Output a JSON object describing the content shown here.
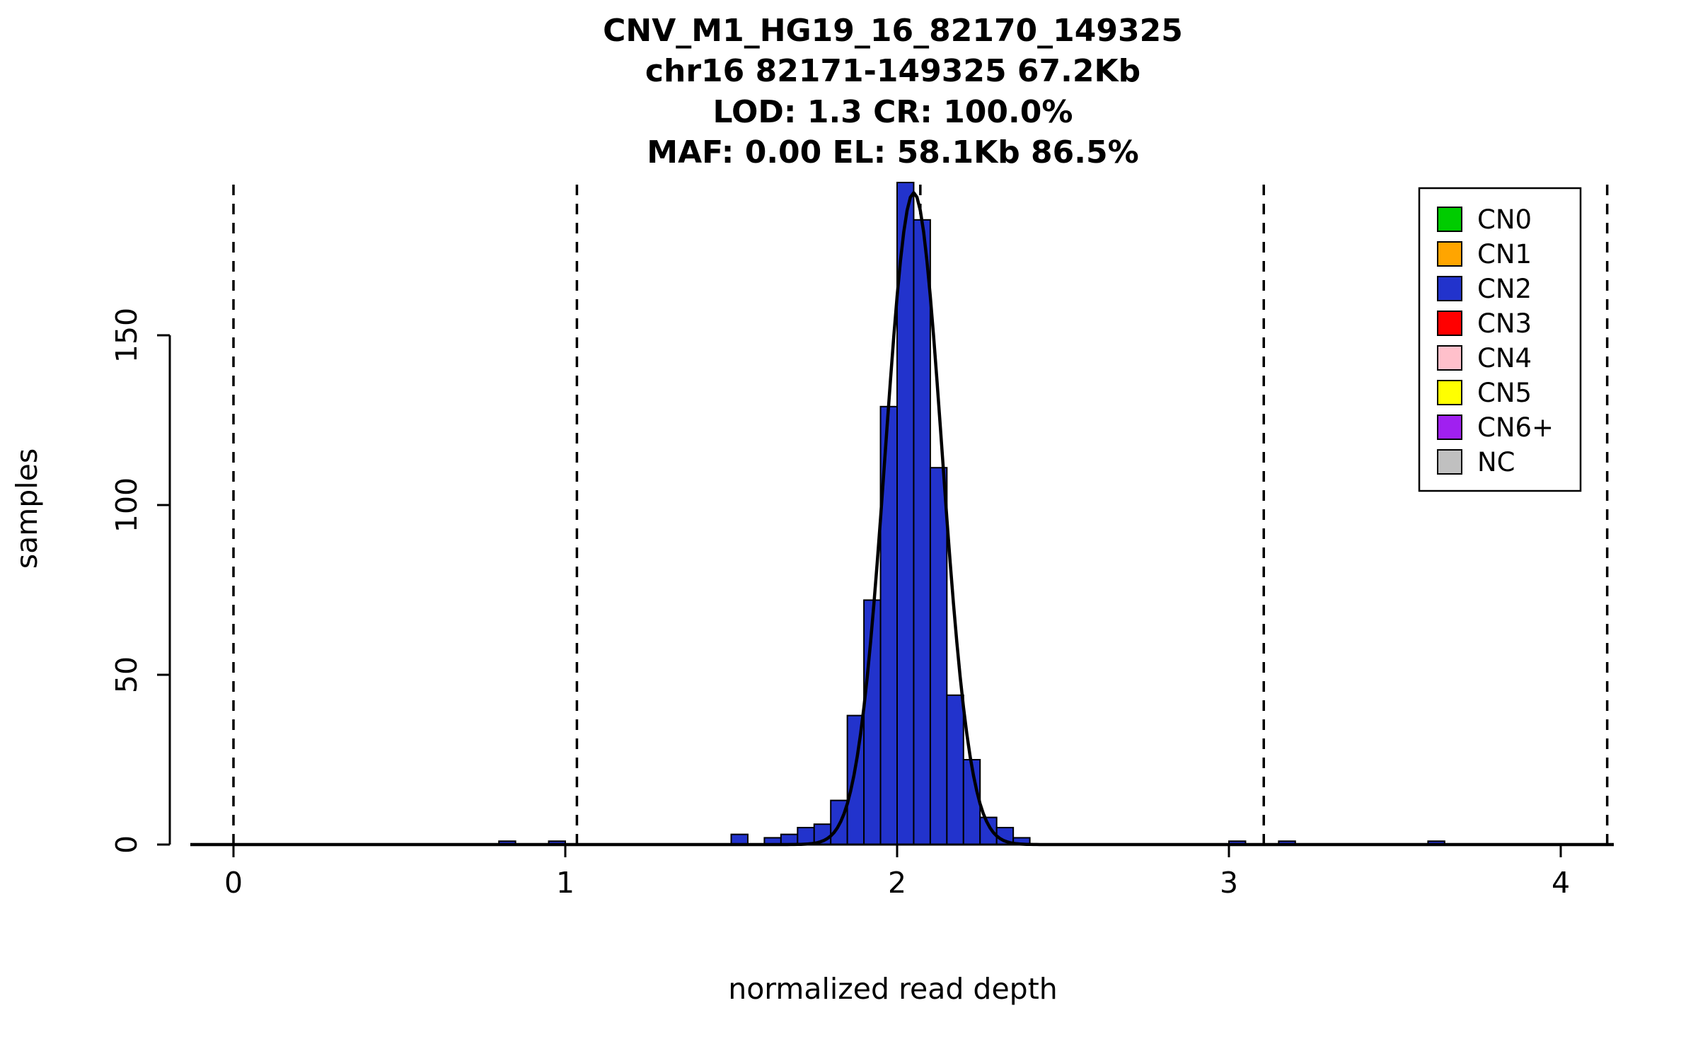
{
  "figure": {
    "background": "#FFFFFF"
  },
  "chart_data": {
    "type": "bar",
    "subtype": "histogram",
    "title_lines": [
      "CNV_M1_HG19_16_82170_149325",
      "chr16 82171-149325 67.2Kb",
      "LOD: 1.3 CR: 100.0%",
      "MAF: 0.00 EL: 58.1Kb 86.5%"
    ],
    "xlabel": "normalized read depth",
    "ylabel": "samples",
    "x_ticks": [
      0,
      1,
      2,
      3,
      4
    ],
    "y_ticks": [
      0,
      50,
      100,
      150
    ],
    "xlim": [
      -0.13,
      4.16
    ],
    "ylim": [
      0,
      195
    ],
    "grid": false,
    "bin_width": 0.05,
    "bars": [
      {
        "x": 0.8,
        "count": 1
      },
      {
        "x": 0.95,
        "count": 1
      },
      {
        "x": 1.5,
        "count": 3
      },
      {
        "x": 1.6,
        "count": 2
      },
      {
        "x": 1.65,
        "count": 3
      },
      {
        "x": 1.7,
        "count": 5
      },
      {
        "x": 1.75,
        "count": 6
      },
      {
        "x": 1.8,
        "count": 13
      },
      {
        "x": 1.85,
        "count": 38
      },
      {
        "x": 1.9,
        "count": 72
      },
      {
        "x": 1.95,
        "count": 129
      },
      {
        "x": 2.0,
        "count": 195
      },
      {
        "x": 2.05,
        "count": 184
      },
      {
        "x": 2.1,
        "count": 111
      },
      {
        "x": 2.15,
        "count": 44
      },
      {
        "x": 2.2,
        "count": 25
      },
      {
        "x": 2.25,
        "count": 8
      },
      {
        "x": 2.3,
        "count": 5
      },
      {
        "x": 2.35,
        "count": 2
      },
      {
        "x": 3.0,
        "count": 1
      },
      {
        "x": 3.15,
        "count": 1
      },
      {
        "x": 3.6,
        "count": 1
      }
    ],
    "fit_curve": {
      "shape": "gaussian",
      "mean": 2.05,
      "sd": 0.085,
      "amplitude": 192
    },
    "dashed_lines_x": [
      0,
      1.035,
      2.07,
      3.105,
      4.14
    ],
    "colors": {
      "bar_fill": "#2233CC",
      "bar_border": "#000000",
      "curve": "#000000",
      "axis": "#000000",
      "dashed_line": "#000000"
    },
    "legend": {
      "position": "top-right",
      "items": [
        {
          "label": "CN0",
          "color": "#00CC00"
        },
        {
          "label": "CN1",
          "color": "#FFA500"
        },
        {
          "label": "CN2",
          "color": "#2233CC"
        },
        {
          "label": "CN3",
          "color": "#FF0000"
        },
        {
          "label": "CN4",
          "color": "#FFC0CB"
        },
        {
          "label": "CN5",
          "color": "#FFFF00"
        },
        {
          "label": "CN6+",
          "color": "#A020F0"
        },
        {
          "label": "NC",
          "color": "#C0C0C0"
        }
      ]
    }
  }
}
